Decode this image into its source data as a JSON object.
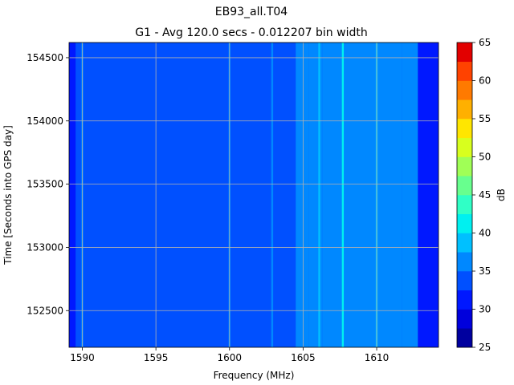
{
  "chart_data": {
    "type": "heatmap",
    "title": "EB93_all.T04",
    "subtitle": "G1 - Avg 120.0 secs - 0.012207 bin width",
    "xlabel": "Frequency (MHz)",
    "ylabel": "Time [Seconds into GPS day]",
    "colorbar_label": "dB",
    "xlim": [
      1589.1,
      1614.2
    ],
    "ylim": [
      152210,
      154620
    ],
    "x_ticks": [
      1590,
      1595,
      1600,
      1605,
      1610
    ],
    "x_tick_labels": [
      "1590",
      "1595",
      "1600",
      "1605",
      "1610"
    ],
    "y_ticks": [
      152500,
      153000,
      153500,
      154000,
      154500
    ],
    "y_tick_labels": [
      "152500",
      "153000",
      "153500",
      "154000",
      "154500"
    ],
    "grid": true,
    "colorbar_levels": [
      25,
      27.5,
      30,
      32.5,
      35,
      37.5,
      40,
      42.5,
      45,
      47.5,
      50,
      52.5,
      55,
      57.5,
      60,
      62.5,
      65
    ],
    "colorbar_ticks": [
      25,
      30,
      35,
      40,
      45,
      50,
      55,
      60,
      65
    ],
    "colorbar_tick_labels": [
      "25",
      "30",
      "35",
      "40",
      "45",
      "50",
      "55",
      "60",
      "65"
    ],
    "colorbar_colors": [
      "#00009f",
      "#0000dc",
      "#0018ff",
      "#0050ff",
      "#0088ff",
      "#00c0ff",
      "#00f0f0",
      "#30ffc6",
      "#68ff8e",
      "#a0ff56",
      "#d8ff1e",
      "#ffe600",
      "#ffb000",
      "#ff7a00",
      "#ff4200",
      "#e20000",
      "#a20000"
    ],
    "bands": [
      {
        "x": [
          1589.1,
          1589.55
        ],
        "level_db": 31
      },
      {
        "x": [
          1589.55,
          1604.5
        ],
        "level_db": 33
      },
      {
        "x": [
          1604.5,
          1605.4
        ],
        "level_db": 35
      },
      {
        "x": [
          1605.4,
          1606.3
        ],
        "level_db": 37
      },
      {
        "x": [
          1606.3,
          1611.7
        ],
        "level_db": 37
      },
      {
        "x": [
          1611.7,
          1612.8
        ],
        "level_db": 35
      },
      {
        "x": [
          1612.8,
          1614.2
        ],
        "level_db": 31
      }
    ],
    "lines": [
      {
        "x": 1590.0,
        "level_db": 35
      },
      {
        "x": 1600.0,
        "level_db": 36
      },
      {
        "x": 1602.9,
        "level_db": 35
      },
      {
        "x": 1605.2,
        "level_db": 37
      },
      {
        "x": 1606.1,
        "level_db": 38
      },
      {
        "x": 1606.5,
        "level_db": 35
      },
      {
        "x": 1607.7,
        "level_db": 40
      },
      {
        "x": 1610.0,
        "level_db": 39
      }
    ]
  }
}
